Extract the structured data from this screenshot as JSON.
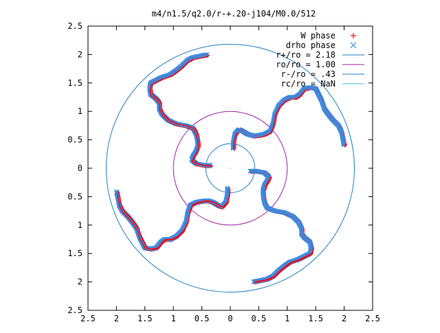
{
  "chart_data": {
    "type": "scatter",
    "title": "m4/n1.5/q2.0/r-+.20-j104/M0.0/512",
    "xlabel": "",
    "ylabel": "",
    "xlim": [
      -2.5,
      2.5
    ],
    "ylim": [
      -2.5,
      2.5
    ],
    "x_tick_values": [
      -2.5,
      -2,
      -1.5,
      -1,
      -0.5,
      0,
      0.5,
      1,
      1.5,
      2,
      2.5
    ],
    "x_tick_labels": [
      "2.5",
      "2",
      "1.5",
      "1",
      "0.5",
      "0",
      "0.5",
      "1",
      "1.5",
      "2",
      "2.5"
    ],
    "y_tick_values": [
      2.5,
      2,
      1.5,
      1,
      0.5,
      0,
      -0.5,
      -1,
      -1.5,
      -2,
      -2.5
    ],
    "y_tick_labels": [
      "2.5",
      "2",
      "1.5",
      "1",
      "0.5",
      "0",
      "0.5",
      "1",
      "1.5",
      "2",
      "2.5"
    ],
    "grid": false,
    "legend_position": "top-right",
    "legend": [
      {
        "label": "W phase",
        "kind": "plus",
        "color": "#ff0000"
      },
      {
        "label": "drho phase",
        "kind": "cross",
        "color": "#3a8ee6"
      },
      {
        "label": "r+/ro = 2.18",
        "kind": "line",
        "color": "#1f7fbf"
      },
      {
        "label": "ro/ro = 1.00",
        "kind": "line",
        "color": "#a020a0"
      },
      {
        "label": "r-/ro = .43",
        "kind": "line",
        "color": "#1f7fbf"
      },
      {
        "label": "rc/ro = NaN",
        "kind": "line",
        "color": "#40c0e0"
      }
    ],
    "circles": [
      {
        "name": "r+/ro",
        "radius": 2.18,
        "color": "#1f7fbf"
      },
      {
        "name": "ro/ro",
        "radius": 1.0,
        "color": "#a020a0"
      },
      {
        "name": "r-/ro",
        "radius": 0.43,
        "color": "#1f7fbf"
      }
    ],
    "spiral_arms": [
      {
        "start_angle_deg": 90,
        "points": [
          [
            0.05,
            0.35
          ],
          [
            0.05,
            0.45
          ],
          [
            0.08,
            0.6
          ],
          [
            0.15,
            0.68
          ],
          [
            0.22,
            0.65
          ],
          [
            0.3,
            0.6
          ],
          [
            0.4,
            0.57
          ],
          [
            0.5,
            0.58
          ],
          [
            0.6,
            0.6
          ],
          [
            0.7,
            0.65
          ],
          [
            0.75,
            0.78
          ],
          [
            0.78,
            0.95
          ],
          [
            0.85,
            1.1
          ],
          [
            0.95,
            1.2
          ],
          [
            1.05,
            1.25
          ],
          [
            1.15,
            1.25
          ],
          [
            1.22,
            1.3
          ],
          [
            1.3,
            1.4
          ],
          [
            1.4,
            1.42
          ],
          [
            1.5,
            1.4
          ],
          [
            1.55,
            1.3
          ],
          [
            1.6,
            1.2
          ],
          [
            1.65,
            1.05
          ],
          [
            1.72,
            0.95
          ],
          [
            1.8,
            0.85
          ],
          [
            1.9,
            0.75
          ],
          [
            1.95,
            0.65
          ],
          [
            1.98,
            0.5
          ],
          [
            2.0,
            0.4
          ]
        ]
      },
      {
        "start_angle_deg": 0,
        "points": [
          [
            0.35,
            -0.05
          ],
          [
            0.45,
            -0.05
          ],
          [
            0.6,
            -0.08
          ],
          [
            0.68,
            -0.15
          ],
          [
            0.65,
            -0.22
          ],
          [
            0.6,
            -0.3
          ],
          [
            0.57,
            -0.4
          ],
          [
            0.58,
            -0.5
          ],
          [
            0.6,
            -0.6
          ],
          [
            0.65,
            -0.7
          ],
          [
            0.78,
            -0.75
          ],
          [
            0.95,
            -0.78
          ],
          [
            1.1,
            -0.85
          ],
          [
            1.2,
            -0.95
          ],
          [
            1.25,
            -1.05
          ],
          [
            1.25,
            -1.15
          ],
          [
            1.3,
            -1.22
          ],
          [
            1.4,
            -1.3
          ],
          [
            1.42,
            -1.4
          ],
          [
            1.4,
            -1.5
          ],
          [
            1.3,
            -1.55
          ],
          [
            1.2,
            -1.6
          ],
          [
            1.05,
            -1.65
          ],
          [
            0.95,
            -1.72
          ],
          [
            0.85,
            -1.8
          ],
          [
            0.75,
            -1.9
          ],
          [
            0.65,
            -1.95
          ],
          [
            0.5,
            -1.98
          ],
          [
            0.4,
            -2.0
          ]
        ]
      },
      {
        "start_angle_deg": 270,
        "points": [
          [
            -0.05,
            -0.35
          ],
          [
            -0.05,
            -0.45
          ],
          [
            -0.08,
            -0.6
          ],
          [
            -0.15,
            -0.68
          ],
          [
            -0.22,
            -0.65
          ],
          [
            -0.3,
            -0.6
          ],
          [
            -0.4,
            -0.57
          ],
          [
            -0.5,
            -0.58
          ],
          [
            -0.6,
            -0.6
          ],
          [
            -0.7,
            -0.65
          ],
          [
            -0.75,
            -0.78
          ],
          [
            -0.78,
            -0.95
          ],
          [
            -0.85,
            -1.1
          ],
          [
            -0.95,
            -1.2
          ],
          [
            -1.05,
            -1.25
          ],
          [
            -1.15,
            -1.25
          ],
          [
            -1.22,
            -1.3
          ],
          [
            -1.3,
            -1.4
          ],
          [
            -1.4,
            -1.42
          ],
          [
            -1.5,
            -1.4
          ],
          [
            -1.55,
            -1.3
          ],
          [
            -1.6,
            -1.2
          ],
          [
            -1.65,
            -1.05
          ],
          [
            -1.72,
            -0.95
          ],
          [
            -1.8,
            -0.85
          ],
          [
            -1.9,
            -0.75
          ],
          [
            -1.95,
            -0.65
          ],
          [
            -1.98,
            -0.5
          ],
          [
            -2.0,
            -0.4
          ]
        ]
      },
      {
        "start_angle_deg": 180,
        "points": [
          [
            -0.35,
            0.05
          ],
          [
            -0.45,
            0.05
          ],
          [
            -0.6,
            0.08
          ],
          [
            -0.68,
            0.15
          ],
          [
            -0.65,
            0.22
          ],
          [
            -0.6,
            0.3
          ],
          [
            -0.57,
            0.4
          ],
          [
            -0.58,
            0.5
          ],
          [
            -0.6,
            0.6
          ],
          [
            -0.65,
            0.7
          ],
          [
            -0.78,
            0.75
          ],
          [
            -0.95,
            0.78
          ],
          [
            -1.1,
            0.85
          ],
          [
            -1.2,
            0.95
          ],
          [
            -1.25,
            1.05
          ],
          [
            -1.25,
            1.15
          ],
          [
            -1.3,
            1.22
          ],
          [
            -1.4,
            1.3
          ],
          [
            -1.42,
            1.4
          ],
          [
            -1.4,
            1.5
          ],
          [
            -1.3,
            1.55
          ],
          [
            -1.2,
            1.6
          ],
          [
            -1.05,
            1.65
          ],
          [
            -0.95,
            1.72
          ],
          [
            -0.85,
            1.8
          ],
          [
            -0.75,
            1.9
          ],
          [
            -0.65,
            1.95
          ],
          [
            -0.5,
            1.98
          ],
          [
            -0.4,
            2.0
          ]
        ]
      }
    ]
  }
}
